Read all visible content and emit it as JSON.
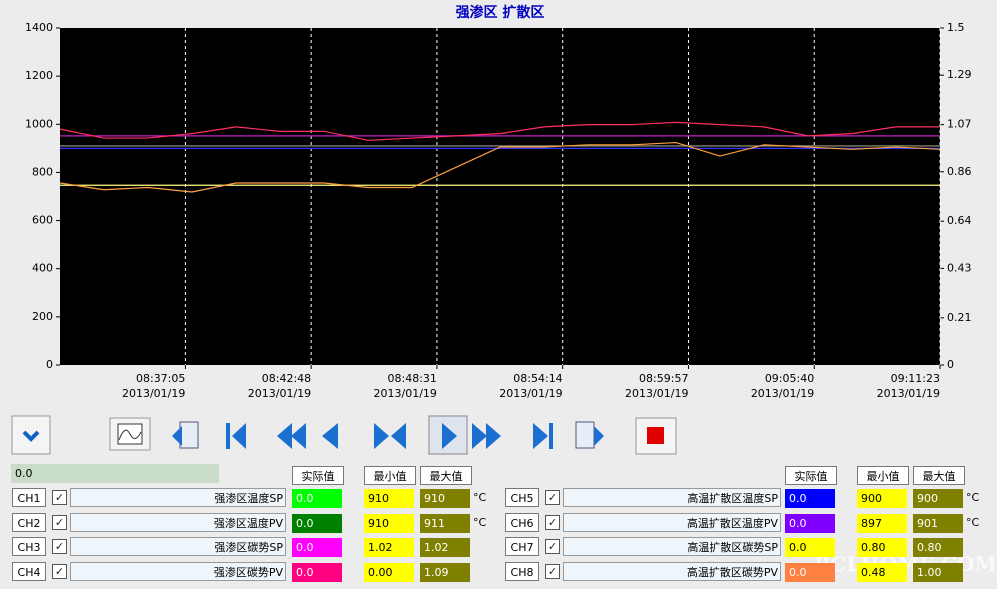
{
  "chart_data": {
    "type": "line",
    "title": "强渗区 扩散区",
    "x": [
      "2013-01-19T08:31:23",
      "2013-01-19T08:33:23",
      "2013-01-19T08:35:23",
      "2013-01-19T08:37:23",
      "2013-01-19T08:39:23",
      "2013-01-19T08:41:23",
      "2013-01-19T08:43:23",
      "2013-01-19T08:45:23",
      "2013-01-19T08:47:23",
      "2013-01-19T08:49:23",
      "2013-01-19T08:51:23",
      "2013-01-19T08:53:23",
      "2013-01-19T08:55:23",
      "2013-01-19T08:57:23",
      "2013-01-19T08:59:23",
      "2013-01-19T09:01:23",
      "2013-01-19T09:03:23",
      "2013-01-19T09:05:23",
      "2013-01-19T09:07:23",
      "2013-01-19T09:09:23",
      "2013-01-19T09:11:23"
    ],
    "xlim": [
      "2013-01-19T08:31:23",
      "2013-01-19T09:11:23"
    ],
    "xticks": [
      {
        "value": "2013-01-19T08:37:05",
        "label": [
          "08:37:05",
          "2013/01/19"
        ]
      },
      {
        "value": "2013-01-19T08:42:48",
        "label": [
          "08:42:48",
          "2013/01/19"
        ]
      },
      {
        "value": "2013-01-19T08:48:31",
        "label": [
          "08:48:31",
          "2013/01/19"
        ]
      },
      {
        "value": "2013-01-19T08:54:14",
        "label": [
          "08:54:14",
          "2013/01/19"
        ]
      },
      {
        "value": "2013-01-19T08:59:57",
        "label": [
          "08:59:57",
          "2013/01/19"
        ]
      },
      {
        "value": "2013-01-19T09:05:40",
        "label": [
          "09:05:40",
          "2013/01/19"
        ]
      },
      {
        "value": "2013-01-19T09:11:23",
        "label": [
          "09:11:23",
          "2013/01/19"
        ]
      }
    ],
    "ylim": [
      0,
      1400
    ],
    "yticks": [
      0,
      200,
      400,
      600,
      800,
      1000,
      1200,
      1400
    ],
    "y2lim": [
      0,
      1.5
    ],
    "y2ticks": [
      0,
      0.21,
      0.43,
      0.64,
      0.86,
      1.07,
      1.29,
      1.5
    ],
    "grid": "x",
    "series": [
      {
        "color": "#a0a080",
        "values": [
          910,
          910,
          910,
          910,
          910,
          910,
          910,
          910,
          910,
          910,
          910,
          910,
          910,
          910,
          910,
          910,
          910,
          910,
          910,
          910,
          910
        ]
      },
      {
        "color": "#3030ff",
        "values": [
          900,
          900,
          900,
          900,
          900,
          900,
          900,
          900,
          900,
          900,
          900,
          900,
          900,
          900,
          900,
          900,
          900,
          900,
          900,
          900,
          900
        ]
      },
      {
        "color": "#c020c0",
        "axis": "y2",
        "values": [
          1.02,
          1.02,
          1.02,
          1.02,
          1.02,
          1.02,
          1.02,
          1.02,
          1.02,
          1.02,
          1.02,
          1.02,
          1.02,
          1.02,
          1.02,
          1.02,
          1.02,
          1.02,
          1.02,
          1.02,
          1.02
        ]
      },
      {
        "color": "#ff3060",
        "axis": "y2",
        "values": [
          1.05,
          1.01,
          1.01,
          1.03,
          1.06,
          1.04,
          1.04,
          1.0,
          1.01,
          1.02,
          1.03,
          1.06,
          1.07,
          1.07,
          1.08,
          1.07,
          1.06,
          1.02,
          1.03,
          1.06,
          1.06
        ]
      },
      {
        "color": "#ffff80",
        "axis": "y2",
        "values": [
          0.8,
          0.8,
          0.8,
          0.8,
          0.8,
          0.8,
          0.8,
          0.8,
          0.8,
          0.8,
          0.8,
          0.8,
          0.8,
          0.8,
          0.8,
          0.8,
          0.8,
          0.8,
          0.8,
          0.8,
          0.8
        ]
      },
      {
        "color": "#ffa040",
        "axis": "y2",
        "values": [
          0.81,
          0.78,
          0.79,
          0.77,
          0.81,
          0.81,
          0.81,
          0.79,
          0.79,
          0.88,
          0.97,
          0.97,
          0.98,
          0.98,
          0.99,
          0.93,
          0.98,
          0.97,
          0.96,
          0.97,
          0.96
        ]
      }
    ]
  },
  "panel": {
    "progress": "0.0",
    "watermark": "RCLHOME.COM",
    "groups": [
      {
        "headers": [
          "实际值",
          "最小值",
          "最大值"
        ],
        "channels": [
          {
            "id": "CH1",
            "name": "强渗区温度SP",
            "actual": "0.0",
            "color": "#00ff00",
            "min": "910",
            "max": "910",
            "unit": "°C"
          },
          {
            "id": "CH2",
            "name": "强渗区温度PV",
            "actual": "0.0",
            "color": "#008000",
            "min": "910",
            "max": "911",
            "unit": "°C"
          },
          {
            "id": "CH3",
            "name": "强渗区碳势SP",
            "actual": "0.0",
            "color": "#ff00ff",
            "min": "1.02",
            "max": "1.02"
          },
          {
            "id": "CH4",
            "name": "强渗区碳势PV",
            "actual": "0.0",
            "color": "#ff0080",
            "min": "0.00",
            "max": "1.09"
          }
        ]
      },
      {
        "headers": [
          "实际值",
          "最小值",
          "最大值"
        ],
        "channels": [
          {
            "id": "CH5",
            "name": "高温扩散区温度SP",
            "actual": "0.0",
            "color": "#0000ff",
            "min": "900",
            "max": "900",
            "unit": "°C"
          },
          {
            "id": "CH6",
            "name": "高温扩散区温度PV",
            "actual": "0.0",
            "color": "#8000ff",
            "min": "897",
            "max": "901",
            "unit": "°C"
          },
          {
            "id": "CH7",
            "name": "高温扩散区碳势SP",
            "actual": "0.0",
            "color": "#ffff00",
            "min": "0.80",
            "max": "0.80"
          },
          {
            "id": "CH8",
            "name": "高温扩散区碳势PV",
            "actual": "0.0",
            "color": "#ff8040",
            "min": "0.48",
            "max": "1.00"
          }
        ]
      }
    ]
  }
}
